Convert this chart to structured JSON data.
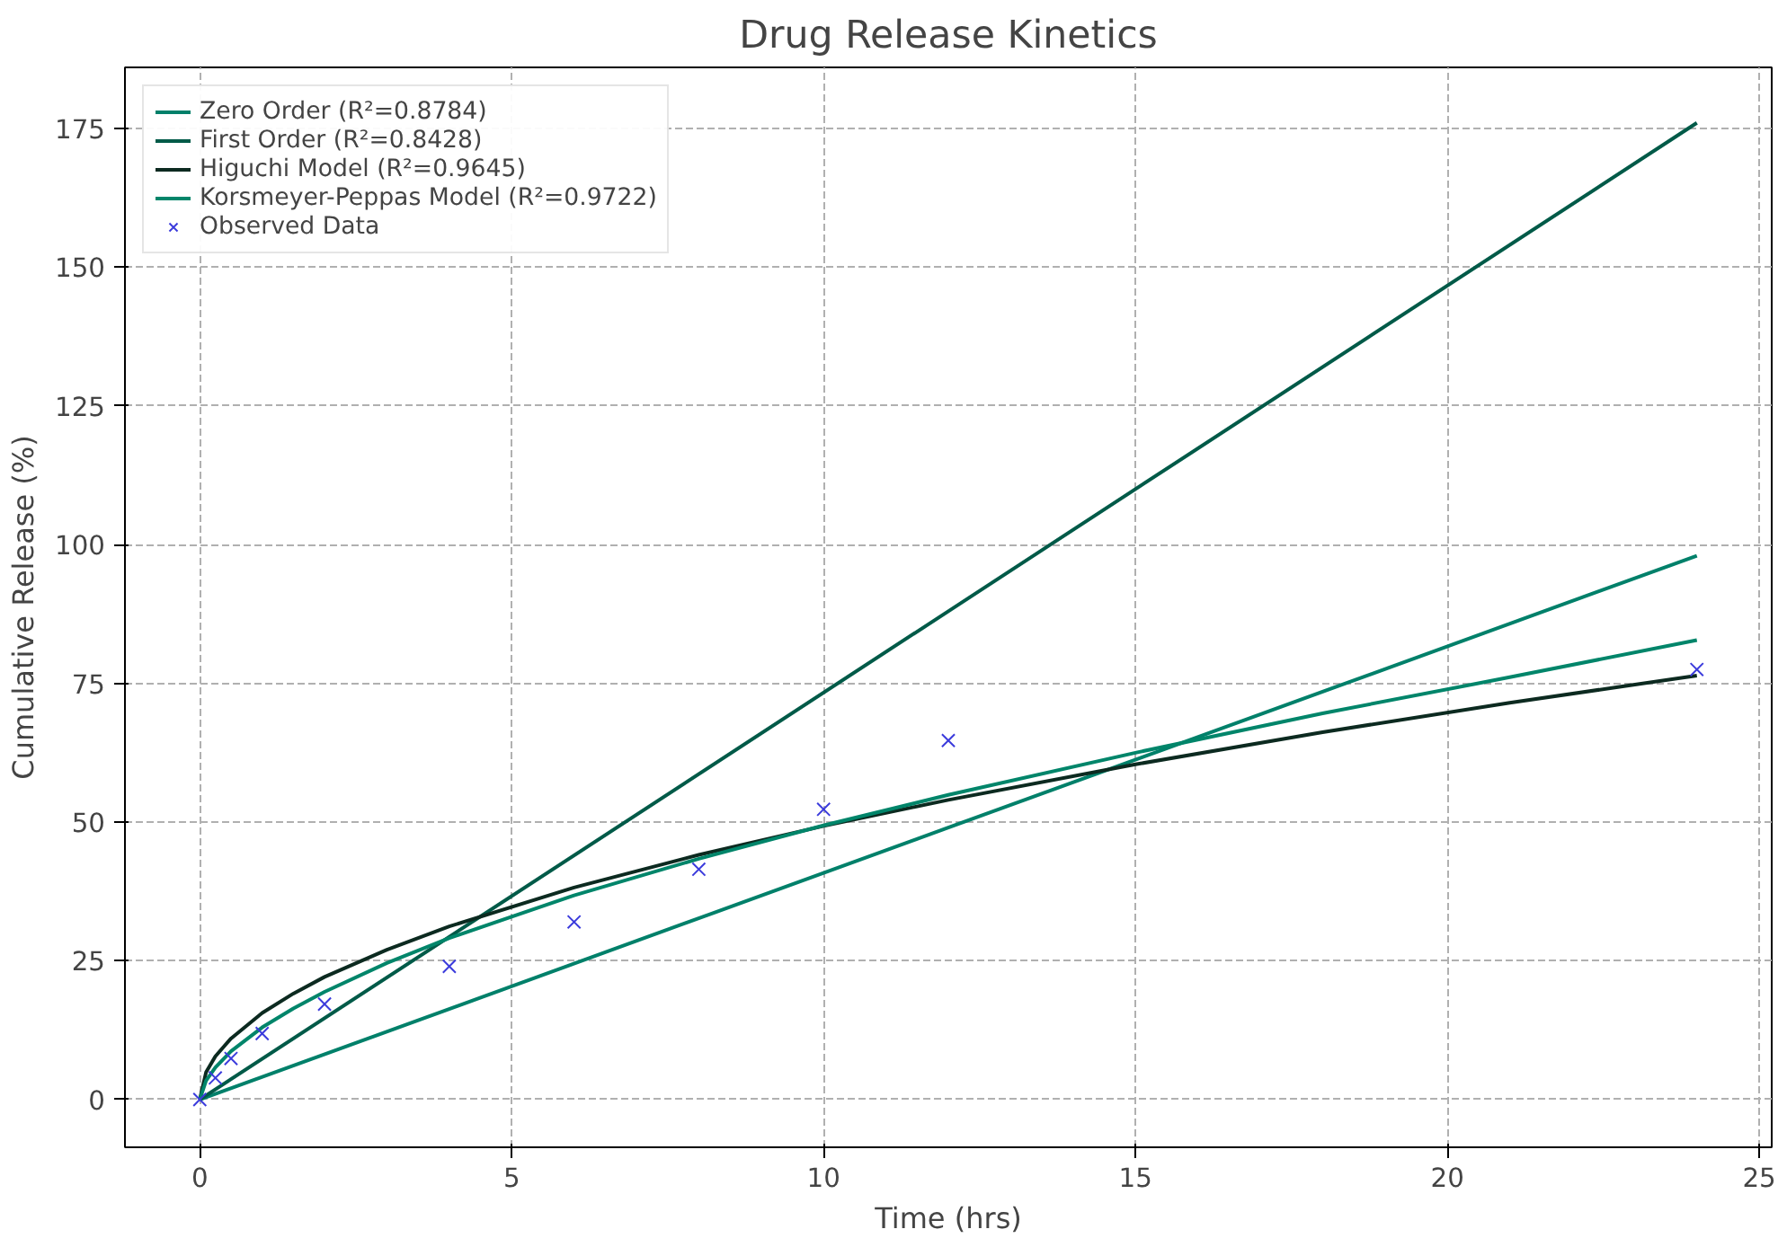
{
  "chart_data": {
    "type": "line",
    "title": "Drug Release Kinetics",
    "xlabel": "Time (hrs)",
    "ylabel": "Cumulative Release (%)",
    "xlim": [
      -1.2,
      25.2
    ],
    "ylim": [
      -8.6,
      186
    ],
    "xticks": [
      0,
      5,
      10,
      15,
      20,
      25
    ],
    "yticks": [
      0,
      25,
      50,
      75,
      100,
      125,
      150,
      175
    ],
    "grid": true,
    "legend": "top left",
    "line_style": "solid",
    "series": [
      {
        "name": "Zero Order (R²=0.8784)",
        "color": "#00806a",
        "x": [
          0,
          12,
          24
        ],
        "values": [
          0,
          49,
          98
        ]
      },
      {
        "name": "First Order (R²=0.8428)",
        "color": "#005a48",
        "x": [
          0,
          12,
          24
        ],
        "values": [
          0,
          88,
          176
        ]
      },
      {
        "name": "Higuchi Model (R²=0.9645)",
        "color": "#0c2a20",
        "x": [
          0,
          0.1,
          0.25,
          0.5,
          1,
          1.5,
          2,
          3,
          4,
          6,
          8,
          10,
          12,
          15,
          18,
          21,
          24
        ],
        "values": [
          0,
          4.9,
          7.8,
          11.0,
          15.6,
          19.1,
          22.1,
          27.0,
          31.2,
          38.2,
          44.1,
          49.3,
          54.0,
          60.4,
          66.2,
          71.5,
          76.4
        ]
      },
      {
        "name": "Korsmeyer-Peppas Model (R²=0.9722)",
        "color": "#00856a",
        "x": [
          0,
          0.1,
          0.25,
          0.5,
          1,
          1.5,
          2,
          3,
          4,
          6,
          8,
          10,
          12,
          15,
          18,
          21,
          24
        ],
        "values": [
          0,
          3.4,
          5.8,
          8.7,
          13,
          16.4,
          19.4,
          24.6,
          29.1,
          36.8,
          43.4,
          49.4,
          54.9,
          62.5,
          69.6,
          76.1,
          82.8
        ]
      },
      {
        "name": "Observed Data",
        "type": "scatter",
        "marker": "cross",
        "color": "#3b3bdc",
        "x": [
          0,
          0.25,
          0.5,
          1,
          2,
          4,
          6,
          8,
          10,
          12,
          24
        ],
        "values": [
          0,
          3.9,
          7.4,
          11.9,
          17.2,
          24,
          32,
          41.5,
          52.3,
          64.7,
          77.5
        ]
      }
    ]
  }
}
